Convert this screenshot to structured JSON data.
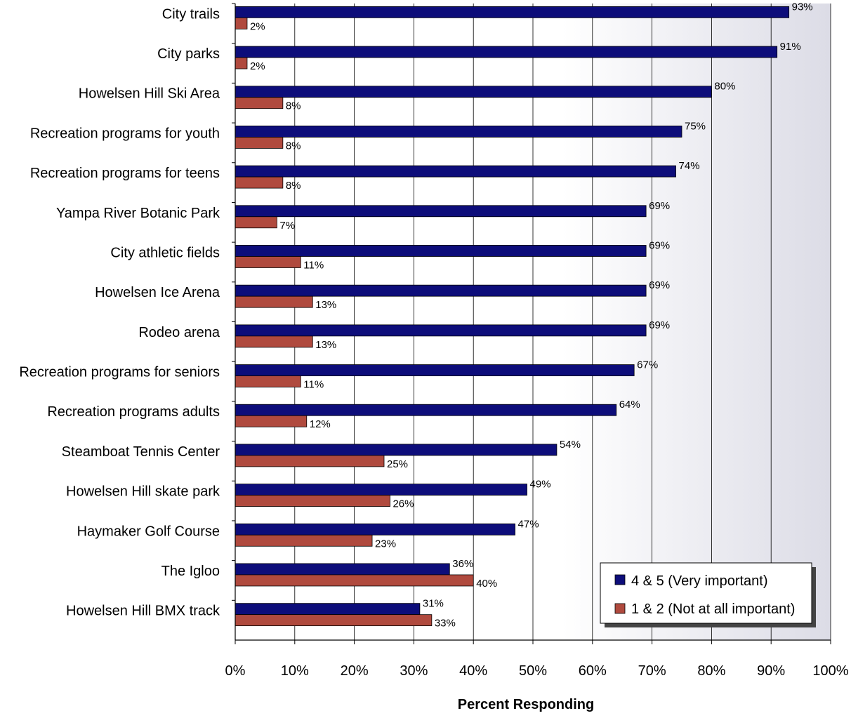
{
  "chart_data": {
    "type": "bar",
    "orientation": "horizontal",
    "categories": [
      "City trails",
      "City parks",
      "Howelsen Hill Ski Area",
      "Recreation programs for youth",
      "Recreation programs for teens",
      "Yampa River Botanic Park",
      "City athletic fields",
      "Howelsen Ice Arena",
      "Rodeo arena",
      "Recreation programs for seniors",
      "Recreation programs adults",
      "Steamboat Tennis Center",
      "Howelsen Hill skate park",
      "Haymaker Golf Course",
      "The Igloo",
      "Howelsen Hill BMX track"
    ],
    "series": [
      {
        "name": "4 & 5 (Very important)",
        "color": "#0d0d7a",
        "values": [
          93,
          91,
          80,
          75,
          74,
          69,
          69,
          69,
          69,
          67,
          64,
          54,
          49,
          47,
          36,
          31
        ]
      },
      {
        "name": "1 & 2 (Not at all important)",
        "color": "#b04a3e",
        "values": [
          2,
          2,
          8,
          8,
          8,
          7,
          11,
          13,
          13,
          11,
          12,
          25,
          26,
          23,
          40,
          33
        ]
      }
    ],
    "value_suffix": "%",
    "xlim": [
      0,
      100
    ],
    "xticks": [
      "0%",
      "10%",
      "20%",
      "30%",
      "40%",
      "50%",
      "60%",
      "70%",
      "80%",
      "90%",
      "100%"
    ],
    "xlabel": "Percent Responding",
    "ylabel": "",
    "grid": true,
    "legend_position": "bottom-right"
  }
}
